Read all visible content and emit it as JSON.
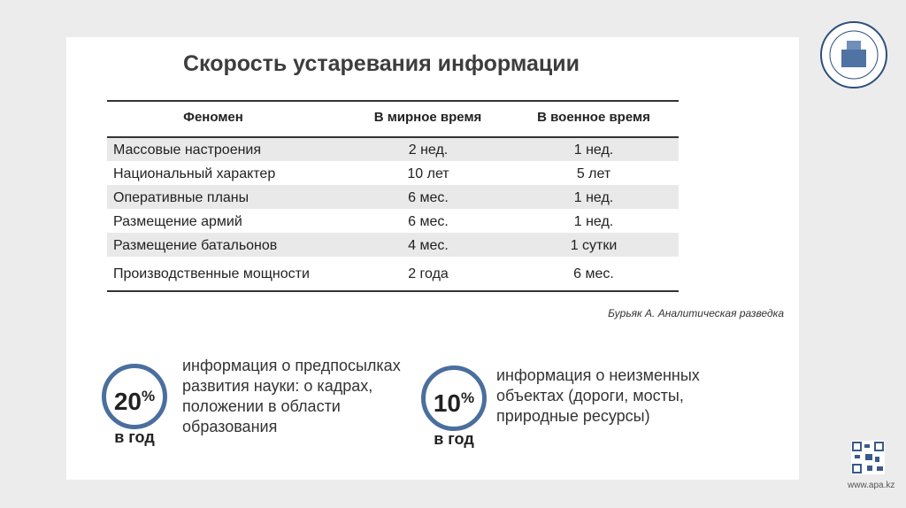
{
  "title": "Скорость устаревания информации",
  "table": {
    "header": [
      "Феномен",
      "В мирное время",
      "В военное время"
    ],
    "rows": [
      [
        "Массовые настроения",
        "2 нед.",
        "1 нед."
      ],
      [
        "Национальный характер",
        "10 лет",
        "5 лет"
      ],
      [
        "Оперативные планы",
        "6 мес.",
        "1 нед."
      ],
      [
        "Размещение армий",
        "6 мес.",
        "1 нед."
      ],
      [
        "Размещение батальонов",
        "4 мес.",
        "1 сутки"
      ],
      [
        "Производственные мощности",
        "2 года",
        "6 мес."
      ]
    ]
  },
  "source": "Бурьяк А. Аналитическая разведка",
  "stats": [
    {
      "value": "20",
      "unit": "%",
      "period": "в год",
      "lines": [
        "информация о предпосылках",
        "развития науки: о кадрах,",
        "положении в области",
        "образования"
      ]
    },
    {
      "value": "10",
      "unit": "%",
      "period": "в год",
      "lines": [
        "информация о неизменных",
        "объектах (дороги, мосты,",
        "природные ресурсы)"
      ]
    }
  ],
  "footer": "www.apa.kz"
}
